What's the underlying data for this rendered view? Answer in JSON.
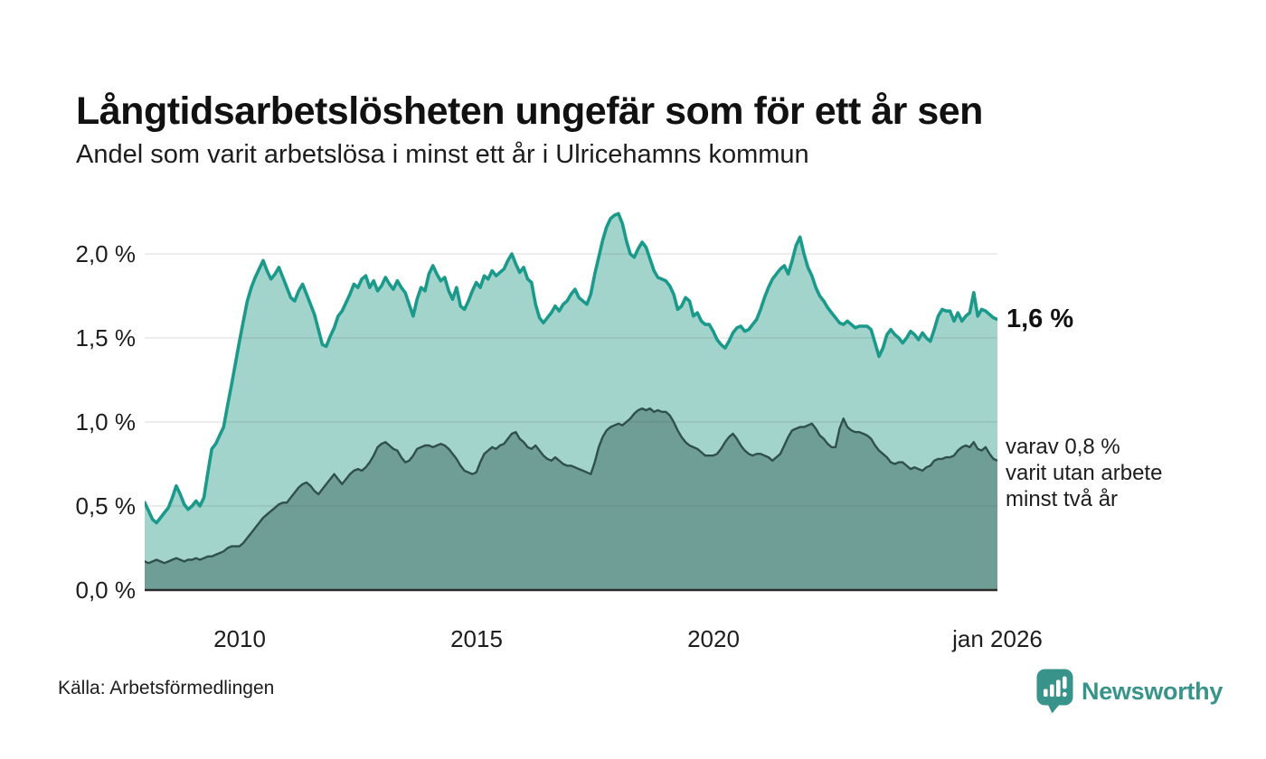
{
  "header": {
    "title": "Långtidsarbetslösheten ungefär som för ett år sen",
    "subtitle": "Andel som varit arbetslösa i minst ett år i Ulricehamns kommun"
  },
  "chart_data": {
    "type": "area",
    "unit": "percent",
    "x_start": "2008-01",
    "x_end": "2026-01",
    "x_interval": "monthly",
    "x_tick_labels": [
      "2010",
      "2015",
      "2020",
      "jan 2026"
    ],
    "y_tick_labels": [
      "0,0 %",
      "0,5 %",
      "1,0 %",
      "1,5 %",
      "2,0 %"
    ],
    "y_tick_values": [
      0,
      0.5,
      1.0,
      1.5,
      2.0
    ],
    "ylim": [
      0,
      2.3
    ],
    "grid": "horizontal",
    "grid_color_rgba": "rgba(68,68,68,0.13)",
    "axis_color": "#2b2b2b",
    "series": [
      {
        "name": "Andel som varit arbetslösa i minst ett år",
        "end_value_label": "1,6 %",
        "line_color": "#1b9a8c",
        "fill_color": "#a2d4cc",
        "values": [
          0.52,
          0.47,
          0.42,
          0.4,
          0.43,
          0.46,
          0.49,
          0.55,
          0.62,
          0.57,
          0.51,
          0.48,
          0.5,
          0.53,
          0.5,
          0.55,
          0.7,
          0.84,
          0.87,
          0.92,
          0.97,
          1.1,
          1.22,
          1.35,
          1.48,
          1.6,
          1.72,
          1.8,
          1.86,
          1.91,
          1.96,
          1.9,
          1.85,
          1.88,
          1.92,
          1.86,
          1.8,
          1.74,
          1.72,
          1.78,
          1.82,
          1.76,
          1.7,
          1.64,
          1.55,
          1.46,
          1.45,
          1.51,
          1.56,
          1.63,
          1.66,
          1.71,
          1.76,
          1.82,
          1.8,
          1.85,
          1.87,
          1.8,
          1.84,
          1.78,
          1.81,
          1.86,
          1.82,
          1.79,
          1.84,
          1.8,
          1.77,
          1.7,
          1.63,
          1.73,
          1.8,
          1.78,
          1.88,
          1.93,
          1.88,
          1.84,
          1.86,
          1.78,
          1.73,
          1.8,
          1.69,
          1.67,
          1.72,
          1.78,
          1.83,
          1.8,
          1.87,
          1.85,
          1.9,
          1.87,
          1.89,
          1.91,
          1.96,
          2.0,
          1.94,
          1.89,
          1.92,
          1.85,
          1.83,
          1.7,
          1.62,
          1.59,
          1.62,
          1.65,
          1.69,
          1.66,
          1.7,
          1.72,
          1.76,
          1.79,
          1.74,
          1.72,
          1.7,
          1.76,
          1.88,
          1.98,
          2.08,
          2.16,
          2.21,
          2.23,
          2.24,
          2.18,
          2.08,
          2.0,
          1.98,
          2.03,
          2.07,
          2.04,
          1.97,
          1.9,
          1.86,
          1.85,
          1.84,
          1.81,
          1.76,
          1.67,
          1.69,
          1.74,
          1.72,
          1.63,
          1.65,
          1.6,
          1.58,
          1.58,
          1.54,
          1.49,
          1.46,
          1.44,
          1.48,
          1.53,
          1.56,
          1.57,
          1.54,
          1.55,
          1.58,
          1.61,
          1.67,
          1.74,
          1.8,
          1.85,
          1.88,
          1.91,
          1.93,
          1.88,
          1.96,
          2.05,
          2.1,
          2.0,
          1.92,
          1.87,
          1.8,
          1.75,
          1.72,
          1.68,
          1.65,
          1.62,
          1.59,
          1.58,
          1.6,
          1.58,
          1.56,
          1.57,
          1.57,
          1.57,
          1.55,
          1.47,
          1.39,
          1.44,
          1.52,
          1.55,
          1.52,
          1.5,
          1.47,
          1.5,
          1.54,
          1.52,
          1.49,
          1.53,
          1.5,
          1.48,
          1.55,
          1.63,
          1.67,
          1.66,
          1.66,
          1.6,
          1.65,
          1.6,
          1.63,
          1.65,
          1.77,
          1.63,
          1.67,
          1.66,
          1.64,
          1.62,
          1.61
        ]
      },
      {
        "name": "varav: andel som varit utan arbete minst två år",
        "end_value_label": "0,8 %",
        "line_color": "#30504b",
        "fill_color": "#6f9e97",
        "values": [
          0.17,
          0.16,
          0.17,
          0.18,
          0.17,
          0.16,
          0.17,
          0.18,
          0.19,
          0.18,
          0.17,
          0.18,
          0.18,
          0.19,
          0.18,
          0.19,
          0.2,
          0.2,
          0.21,
          0.22,
          0.23,
          0.25,
          0.26,
          0.26,
          0.26,
          0.28,
          0.31,
          0.34,
          0.37,
          0.4,
          0.43,
          0.45,
          0.47,
          0.49,
          0.51,
          0.52,
          0.52,
          0.55,
          0.58,
          0.61,
          0.63,
          0.64,
          0.62,
          0.59,
          0.57,
          0.6,
          0.63,
          0.66,
          0.69,
          0.66,
          0.63,
          0.66,
          0.69,
          0.71,
          0.72,
          0.71,
          0.73,
          0.76,
          0.8,
          0.85,
          0.87,
          0.88,
          0.86,
          0.84,
          0.83,
          0.79,
          0.76,
          0.77,
          0.8,
          0.84,
          0.85,
          0.86,
          0.86,
          0.85,
          0.86,
          0.87,
          0.86,
          0.84,
          0.81,
          0.78,
          0.74,
          0.71,
          0.7,
          0.69,
          0.7,
          0.76,
          0.81,
          0.83,
          0.85,
          0.84,
          0.86,
          0.87,
          0.9,
          0.93,
          0.94,
          0.9,
          0.88,
          0.85,
          0.84,
          0.86,
          0.83,
          0.8,
          0.78,
          0.77,
          0.79,
          0.77,
          0.75,
          0.74,
          0.74,
          0.73,
          0.72,
          0.71,
          0.7,
          0.69,
          0.76,
          0.85,
          0.91,
          0.95,
          0.97,
          0.98,
          0.99,
          0.98,
          1.0,
          1.02,
          1.05,
          1.07,
          1.08,
          1.07,
          1.08,
          1.06,
          1.07,
          1.06,
          1.06,
          1.04,
          1.0,
          0.95,
          0.91,
          0.88,
          0.86,
          0.85,
          0.84,
          0.82,
          0.8,
          0.8,
          0.8,
          0.81,
          0.84,
          0.88,
          0.91,
          0.93,
          0.9,
          0.86,
          0.83,
          0.81,
          0.8,
          0.81,
          0.81,
          0.8,
          0.79,
          0.77,
          0.79,
          0.81,
          0.86,
          0.91,
          0.95,
          0.96,
          0.97,
          0.97,
          0.98,
          0.99,
          0.96,
          0.92,
          0.9,
          0.87,
          0.85,
          0.85,
          0.96,
          1.02,
          0.97,
          0.95,
          0.94,
          0.94,
          0.93,
          0.92,
          0.9,
          0.86,
          0.83,
          0.81,
          0.79,
          0.76,
          0.75,
          0.76,
          0.76,
          0.74,
          0.72,
          0.73,
          0.72,
          0.71,
          0.73,
          0.74,
          0.77,
          0.78,
          0.78,
          0.79,
          0.79,
          0.8,
          0.83,
          0.85,
          0.86,
          0.85,
          0.88,
          0.84,
          0.83,
          0.85,
          0.81,
          0.78,
          0.77
        ]
      }
    ]
  },
  "annotations": {
    "series1_end_label": "1,6 %",
    "series2_note_lines": [
      "varav 0,8 %",
      "varit utan arbete",
      "minst två år"
    ]
  },
  "footer": {
    "source": "Källa: Arbetsförmedlingen",
    "logo": {
      "text": "Newsworthy",
      "color": "#38938b",
      "icon": "bar-chart-speech-bubble-icon"
    }
  }
}
